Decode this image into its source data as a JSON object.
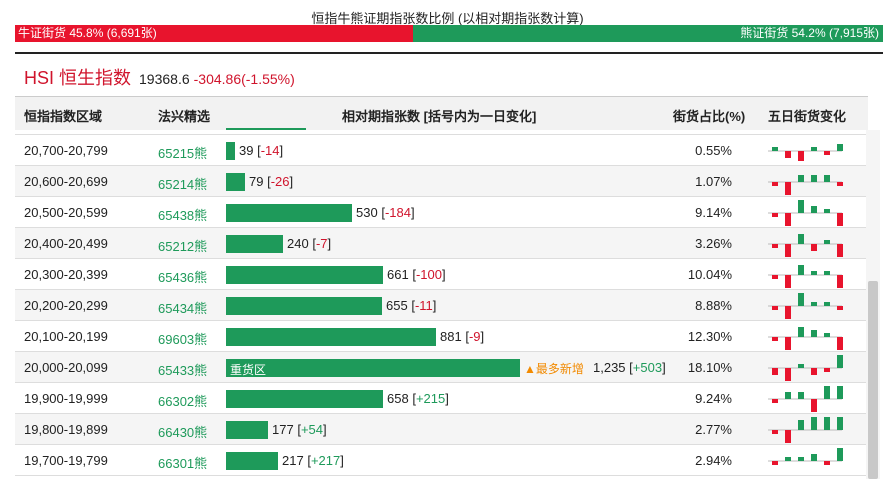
{
  "header": {
    "title": "恒指牛熊证期指张数比例 (以相对期指张数计算)",
    "bull_label": "牛证街货 45.8% (6,691张)",
    "bear_label": "熊证街货 54.2% (7,915张)"
  },
  "index": {
    "name": "HSI 恒生指数",
    "price": "19368.6",
    "change": "-304.86(-1.55%)"
  },
  "table": {
    "columns": {
      "range": "恒指指数区域",
      "pick": "法兴精选",
      "count": "相对期指张数 [括号内为一日变化]",
      "pct": "街货占比(%)",
      "five_day": "五日街货变化"
    },
    "rows": [
      {
        "range": "20,700-20,799",
        "code": "65215熊",
        "count": "39",
        "change": "-14",
        "up": false,
        "pct": "0.55%",
        "value": 39,
        "spark": [
          1,
          -2,
          -3,
          1,
          -1,
          2
        ]
      },
      {
        "range": "20,600-20,699",
        "code": "65214熊",
        "count": "79",
        "change": "-26",
        "up": false,
        "pct": "1.07%",
        "value": 79,
        "spark": [
          -1,
          -4,
          2,
          2,
          2,
          -1
        ]
      },
      {
        "range": "20,500-20,599",
        "code": "65438熊",
        "count": "530",
        "change": "-184",
        "up": false,
        "pct": "9.14%",
        "value": 530,
        "spark": [
          -1,
          -4,
          4,
          2,
          1,
          -4
        ]
      },
      {
        "range": "20,400-20,499",
        "code": "65212熊",
        "count": "240",
        "change": "-7",
        "up": false,
        "pct": "3.26%",
        "value": 240,
        "spark": [
          -1,
          -4,
          3,
          -2,
          1,
          -4
        ]
      },
      {
        "range": "20,300-20,399",
        "code": "65436熊",
        "count": "661",
        "change": "-100",
        "up": false,
        "pct": "10.04%",
        "value": 661,
        "spark": [
          -1,
          -4,
          3,
          1,
          1,
          -4
        ]
      },
      {
        "range": "20,200-20,299",
        "code": "65434熊",
        "count": "655",
        "change": "-11",
        "up": false,
        "pct": "8.88%",
        "value": 655,
        "spark": [
          -1,
          -4,
          4,
          1,
          1,
          -1
        ]
      },
      {
        "range": "20,100-20,199",
        "code": "69603熊",
        "count": "881",
        "change": "-9",
        "up": false,
        "pct": "12.30%",
        "value": 881,
        "spark": [
          -1,
          -4,
          3,
          2,
          1,
          -4
        ]
      },
      {
        "range": "20,000-20,099",
        "code": "65433熊",
        "count": "1,235",
        "change": "+503",
        "up": true,
        "pct": "18.10%",
        "value": 1235,
        "label": "重货区",
        "badge": "▲最多新增",
        "spark": [
          -2,
          -4,
          1,
          -2,
          -1,
          4
        ]
      },
      {
        "range": "19,900-19,999",
        "code": "66302熊",
        "count": "658",
        "change": "+215",
        "up": true,
        "pct": "9.24%",
        "value": 658,
        "spark": [
          -1,
          2,
          2,
          -4,
          4,
          4
        ]
      },
      {
        "range": "19,800-19,899",
        "code": "66430熊",
        "count": "177",
        "change": "+54",
        "up": true,
        "pct": "2.77%",
        "value": 177,
        "spark": [
          -1,
          -4,
          3,
          4,
          4,
          4
        ]
      },
      {
        "range": "19,700-19,799",
        "code": "66301熊",
        "count": "217",
        "change": "+217",
        "up": true,
        "pct": "2.94%",
        "value": 217,
        "spark": [
          -1,
          1,
          1,
          2,
          -1,
          4
        ]
      }
    ]
  },
  "colors": {
    "bull_red": "#e8142d",
    "bear_green": "#1e9a5a",
    "badge_orange": "#f28a00"
  }
}
